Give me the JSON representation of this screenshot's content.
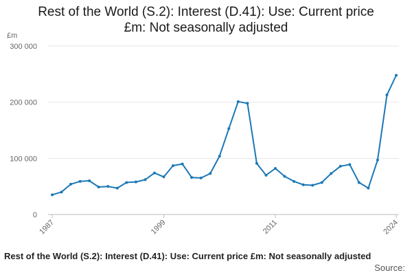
{
  "page": {
    "title_line1": "Rest of the World (S.2): Interest (D.41): Use: Current price",
    "title_line2": "£m: Not seasonally adjusted",
    "footer_title": "Rest of the World (S.2): Interest (D.41): Use: Current price £m: Not seasonally adjusted",
    "source_label": "Source:"
  },
  "colors": {
    "line": "#1a78b6",
    "grid": "#e6e6e6",
    "axis": "#bbbbbb"
  },
  "chart_data": {
    "type": "line",
    "title": "Rest of the World (S.2): Interest (D.41): Use: Current price £m: Not seasonally adjusted",
    "ylabel": "£m",
    "xlabel": "",
    "grid": true,
    "ylim": [
      0,
      300000
    ],
    "yticks": [
      0,
      100000,
      200000,
      300000
    ],
    "ytick_labels": [
      "0",
      "100 000",
      "200 000",
      "300 000"
    ],
    "xlim": [
      1987,
      2024
    ],
    "xticks": [
      1987,
      1999,
      2011,
      2024
    ],
    "xtick_labels": [
      "1987",
      "1999",
      "2011",
      "2024"
    ],
    "series": [
      {
        "x": [
          1987,
          1988,
          1989,
          1990,
          1991,
          1992,
          1993,
          1994,
          1995,
          1996,
          1997,
          1998,
          1999,
          2000,
          2001,
          2002,
          2003,
          2004,
          2005,
          2006,
          2007,
          2008,
          2009,
          2010,
          2011,
          2012,
          2013,
          2014,
          2015,
          2016,
          2017,
          2018,
          2019,
          2020,
          2021,
          2022,
          2023,
          2024
        ],
        "values": [
          35000,
          40000,
          54000,
          59000,
          60000,
          49000,
          50000,
          47000,
          57000,
          58000,
          62000,
          74000,
          67000,
          87000,
          90000,
          66000,
          65000,
          73000,
          104000,
          153000,
          201000,
          198000,
          91000,
          70000,
          82000,
          68000,
          59000,
          53000,
          52000,
          57000,
          73000,
          86000,
          89000,
          57000,
          47000,
          97000,
          213000,
          248000
        ]
      }
    ]
  }
}
